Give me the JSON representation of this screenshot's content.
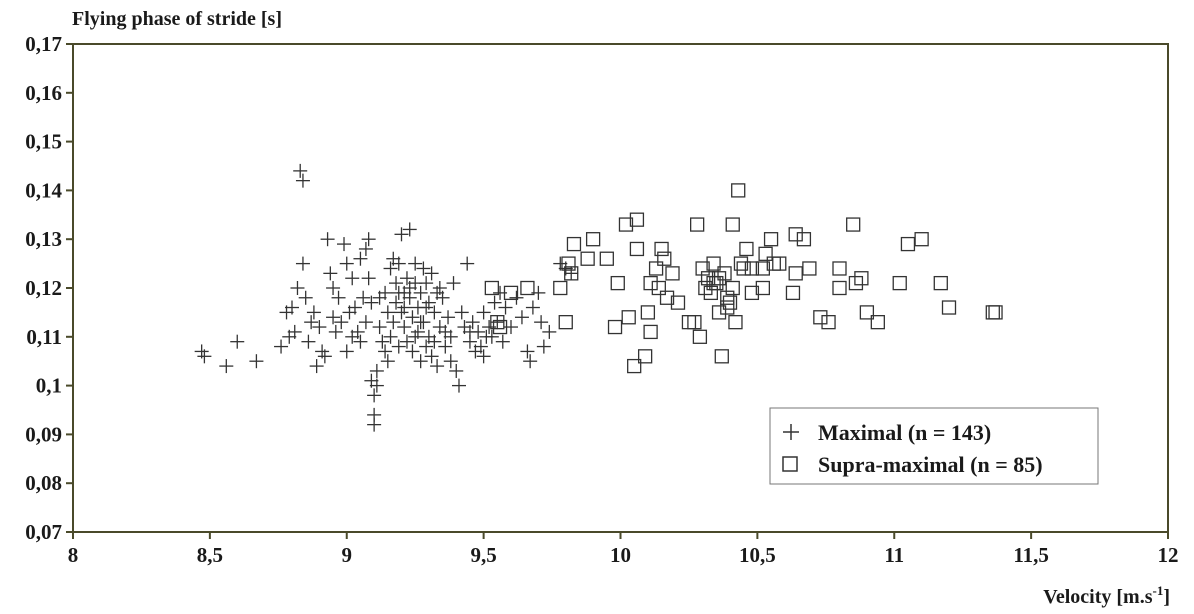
{
  "chart_data": {
    "type": "scatter",
    "ylabel": "Flying phase of stride [s]",
    "xlabel": "Velocity [m.s",
    "xlabel_sup": "-1",
    "xlabel_end": "]",
    "xlim": [
      8,
      12
    ],
    "ylim": [
      0.07,
      0.17
    ],
    "x_ticks": [
      {
        "value": 8,
        "label": "8"
      },
      {
        "value": 8.5,
        "label": "8,5"
      },
      {
        "value": 9,
        "label": "9"
      },
      {
        "value": 9.5,
        "label": "9,5"
      },
      {
        "value": 10,
        "label": "10"
      },
      {
        "value": 10.5,
        "label": "10,5"
      },
      {
        "value": 11,
        "label": "11"
      },
      {
        "value": 11.5,
        "label": "11,5"
      },
      {
        "value": 12,
        "label": "12"
      }
    ],
    "y_ticks": [
      {
        "value": 0.07,
        "label": "0,07"
      },
      {
        "value": 0.08,
        "label": "0,08"
      },
      {
        "value": 0.09,
        "label": "0,09"
      },
      {
        "value": 0.1,
        "label": "0,1"
      },
      {
        "value": 0.11,
        "label": "0,11"
      },
      {
        "value": 0.12,
        "label": "0,12"
      },
      {
        "value": 0.13,
        "label": "0,13"
      },
      {
        "value": 0.14,
        "label": "0,14"
      },
      {
        "value": 0.15,
        "label": "0,15"
      },
      {
        "value": 0.16,
        "label": "0,16"
      },
      {
        "value": 0.17,
        "label": "0,17"
      }
    ],
    "grid": false,
    "legend_position": "bottom-right",
    "colors": {
      "frame": "#4a4a2a",
      "marker": "#333333",
      "text": "#1a1a1a"
    },
    "series": [
      {
        "name": "Maximal (n = 143)",
        "marker": "plus",
        "points": [
          [
            8.47,
            0.107
          ],
          [
            8.48,
            0.106
          ],
          [
            8.56,
            0.104
          ],
          [
            8.6,
            0.109
          ],
          [
            8.67,
            0.105
          ],
          [
            8.76,
            0.108
          ],
          [
            8.78,
            0.115
          ],
          [
            8.8,
            0.116
          ],
          [
            8.81,
            0.111
          ],
          [
            8.82,
            0.12
          ],
          [
            8.83,
            0.144
          ],
          [
            8.84,
            0.142
          ],
          [
            8.84,
            0.125
          ],
          [
            8.85,
            0.118
          ],
          [
            8.86,
            0.109
          ],
          [
            8.87,
            0.113
          ],
          [
            8.88,
            0.115
          ],
          [
            8.89,
            0.104
          ],
          [
            8.9,
            0.112
          ],
          [
            8.91,
            0.107
          ],
          [
            8.92,
            0.106
          ],
          [
            8.93,
            0.13
          ],
          [
            8.94,
            0.123
          ],
          [
            8.95,
            0.12
          ],
          [
            8.96,
            0.111
          ],
          [
            8.97,
            0.118
          ],
          [
            8.98,
            0.113
          ],
          [
            8.99,
            0.129
          ],
          [
            9.0,
            0.125
          ],
          [
            9.0,
            0.107
          ],
          [
            9.01,
            0.115
          ],
          [
            9.02,
            0.122
          ],
          [
            9.03,
            0.116
          ],
          [
            9.04,
            0.111
          ],
          [
            9.05,
            0.109
          ],
          [
            9.06,
            0.118
          ],
          [
            9.07,
            0.113
          ],
          [
            9.07,
            0.128
          ],
          [
            9.08,
            0.13
          ],
          [
            9.08,
            0.122
          ],
          [
            9.09,
            0.117
          ],
          [
            9.09,
            0.101
          ],
          [
            9.1,
            0.098
          ],
          [
            9.1,
            0.094
          ],
          [
            9.1,
            0.092
          ],
          [
            9.11,
            0.103
          ],
          [
            9.11,
            0.1
          ],
          [
            9.12,
            0.112
          ],
          [
            9.13,
            0.109
          ],
          [
            9.14,
            0.107
          ],
          [
            9.14,
            0.119
          ],
          [
            9.15,
            0.115
          ],
          [
            9.16,
            0.124
          ],
          [
            9.16,
            0.11
          ],
          [
            9.17,
            0.113
          ],
          [
            9.18,
            0.121
          ],
          [
            9.18,
            0.117
          ],
          [
            9.19,
            0.125
          ],
          [
            9.19,
            0.108
          ],
          [
            9.2,
            0.131
          ],
          [
            9.2,
            0.115
          ],
          [
            9.21,
            0.119
          ],
          [
            9.21,
            0.112
          ],
          [
            9.22,
            0.122
          ],
          [
            9.22,
            0.109
          ],
          [
            9.23,
            0.132
          ],
          [
            9.23,
            0.118
          ],
          [
            9.24,
            0.114
          ],
          [
            9.24,
            0.107
          ],
          [
            9.25,
            0.121
          ],
          [
            9.25,
            0.125
          ],
          [
            9.26,
            0.116
          ],
          [
            9.26,
            0.111
          ],
          [
            9.27,
            0.119
          ],
          [
            9.27,
            0.105
          ],
          [
            9.28,
            0.124
          ],
          [
            9.28,
            0.113
          ],
          [
            9.29,
            0.108
          ],
          [
            9.29,
            0.121
          ],
          [
            9.3,
            0.117
          ],
          [
            9.3,
            0.11
          ],
          [
            9.31,
            0.106
          ],
          [
            9.31,
            0.123
          ],
          [
            9.32,
            0.115
          ],
          [
            9.33,
            0.119
          ],
          [
            9.33,
            0.104
          ],
          [
            9.34,
            0.112
          ],
          [
            9.35,
            0.118
          ],
          [
            9.36,
            0.108
          ],
          [
            9.37,
            0.114
          ],
          [
            9.38,
            0.11
          ],
          [
            9.39,
            0.121
          ],
          [
            9.4,
            0.103
          ],
          [
            9.41,
            0.1
          ],
          [
            9.42,
            0.115
          ],
          [
            9.43,
            0.112
          ],
          [
            9.44,
            0.125
          ],
          [
            9.45,
            0.109
          ],
          [
            9.46,
            0.113
          ],
          [
            9.47,
            0.107
          ],
          [
            9.48,
            0.111
          ],
          [
            9.49,
            0.108
          ],
          [
            9.5,
            0.106
          ],
          [
            9.5,
            0.115
          ],
          [
            9.52,
            0.112
          ],
          [
            9.53,
            0.11
          ],
          [
            9.54,
            0.117
          ],
          [
            9.55,
            0.113
          ],
          [
            9.56,
            0.119
          ],
          [
            9.57,
            0.109
          ],
          [
            9.58,
            0.116
          ],
          [
            9.6,
            0.112
          ],
          [
            9.62,
            0.118
          ],
          [
            9.64,
            0.114
          ],
          [
            9.66,
            0.107
          ],
          [
            9.67,
            0.105
          ],
          [
            9.68,
            0.116
          ],
          [
            9.7,
            0.119
          ],
          [
            9.71,
            0.113
          ],
          [
            9.72,
            0.108
          ],
          [
            9.74,
            0.111
          ],
          [
            9.78,
            0.125
          ],
          [
            9.8,
            0.124
          ],
          [
            9.82,
            0.123
          ],
          [
            8.79,
            0.11
          ],
          [
            8.95,
            0.114
          ],
          [
            9.02,
            0.11
          ],
          [
            9.05,
            0.126
          ],
          [
            9.12,
            0.118
          ],
          [
            9.15,
            0.105
          ],
          [
            9.17,
            0.126
          ],
          [
            9.19,
            0.119
          ],
          [
            9.21,
            0.116
          ],
          [
            9.23,
            0.12
          ],
          [
            9.25,
            0.11
          ],
          [
            9.27,
            0.113
          ],
          [
            9.29,
            0.116
          ],
          [
            9.32,
            0.109
          ],
          [
            9.34,
            0.12
          ],
          [
            9.36,
            0.111
          ],
          [
            9.38,
            0.105
          ],
          [
            9.45,
            0.111
          ],
          [
            9.51,
            0.11
          ]
        ]
      },
      {
        "name": "Supra-maximal (n = 85)",
        "marker": "square",
        "points": [
          [
            9.53,
            0.12
          ],
          [
            9.55,
            0.113
          ],
          [
            9.56,
            0.112
          ],
          [
            9.6,
            0.119
          ],
          [
            9.66,
            0.12
          ],
          [
            9.78,
            0.12
          ],
          [
            9.8,
            0.113
          ],
          [
            9.81,
            0.125
          ],
          [
            9.82,
            0.123
          ],
          [
            9.83,
            0.129
          ],
          [
            9.88,
            0.126
          ],
          [
            9.9,
            0.13
          ],
          [
            9.95,
            0.126
          ],
          [
            9.98,
            0.112
          ],
          [
            9.99,
            0.121
          ],
          [
            10.02,
            0.133
          ],
          [
            10.03,
            0.114
          ],
          [
            10.05,
            0.104
          ],
          [
            10.06,
            0.134
          ],
          [
            10.06,
            0.128
          ],
          [
            10.09,
            0.106
          ],
          [
            10.1,
            0.115
          ],
          [
            10.11,
            0.121
          ],
          [
            10.11,
            0.111
          ],
          [
            10.13,
            0.124
          ],
          [
            10.14,
            0.12
          ],
          [
            10.15,
            0.128
          ],
          [
            10.16,
            0.126
          ],
          [
            10.17,
            0.118
          ],
          [
            10.19,
            0.123
          ],
          [
            10.21,
            0.117
          ],
          [
            10.25,
            0.113
          ],
          [
            10.27,
            0.113
          ],
          [
            10.28,
            0.133
          ],
          [
            10.29,
            0.11
          ],
          [
            10.3,
            0.124
          ],
          [
            10.31,
            0.12
          ],
          [
            10.32,
            0.122
          ],
          [
            10.33,
            0.119
          ],
          [
            10.34,
            0.125
          ],
          [
            10.34,
            0.121
          ],
          [
            10.35,
            0.121
          ],
          [
            10.36,
            0.122
          ],
          [
            10.36,
            0.115
          ],
          [
            10.37,
            0.106
          ],
          [
            10.38,
            0.123
          ],
          [
            10.39,
            0.118
          ],
          [
            10.39,
            0.116
          ],
          [
            10.4,
            0.117
          ],
          [
            10.41,
            0.12
          ],
          [
            10.41,
            0.133
          ],
          [
            10.42,
            0.113
          ],
          [
            10.43,
            0.14
          ],
          [
            10.44,
            0.125
          ],
          [
            10.45,
            0.124
          ],
          [
            10.46,
            0.128
          ],
          [
            10.48,
            0.124
          ],
          [
            10.48,
            0.119
          ],
          [
            10.52,
            0.12
          ],
          [
            10.52,
            0.124
          ],
          [
            10.53,
            0.127
          ],
          [
            10.55,
            0.13
          ],
          [
            10.56,
            0.125
          ],
          [
            10.58,
            0.125
          ],
          [
            10.63,
            0.119
          ],
          [
            10.64,
            0.131
          ],
          [
            10.64,
            0.123
          ],
          [
            10.67,
            0.13
          ],
          [
            10.69,
            0.124
          ],
          [
            10.73,
            0.114
          ],
          [
            10.76,
            0.113
          ],
          [
            10.8,
            0.124
          ],
          [
            10.8,
            0.12
          ],
          [
            10.85,
            0.133
          ],
          [
            10.86,
            0.121
          ],
          [
            10.88,
            0.122
          ],
          [
            10.9,
            0.115
          ],
          [
            10.94,
            0.113
          ],
          [
            11.02,
            0.121
          ],
          [
            11.05,
            0.129
          ],
          [
            11.1,
            0.13
          ],
          [
            11.17,
            0.121
          ],
          [
            11.2,
            0.116
          ],
          [
            11.36,
            0.115
          ],
          [
            11.37,
            0.115
          ]
        ]
      }
    ]
  }
}
